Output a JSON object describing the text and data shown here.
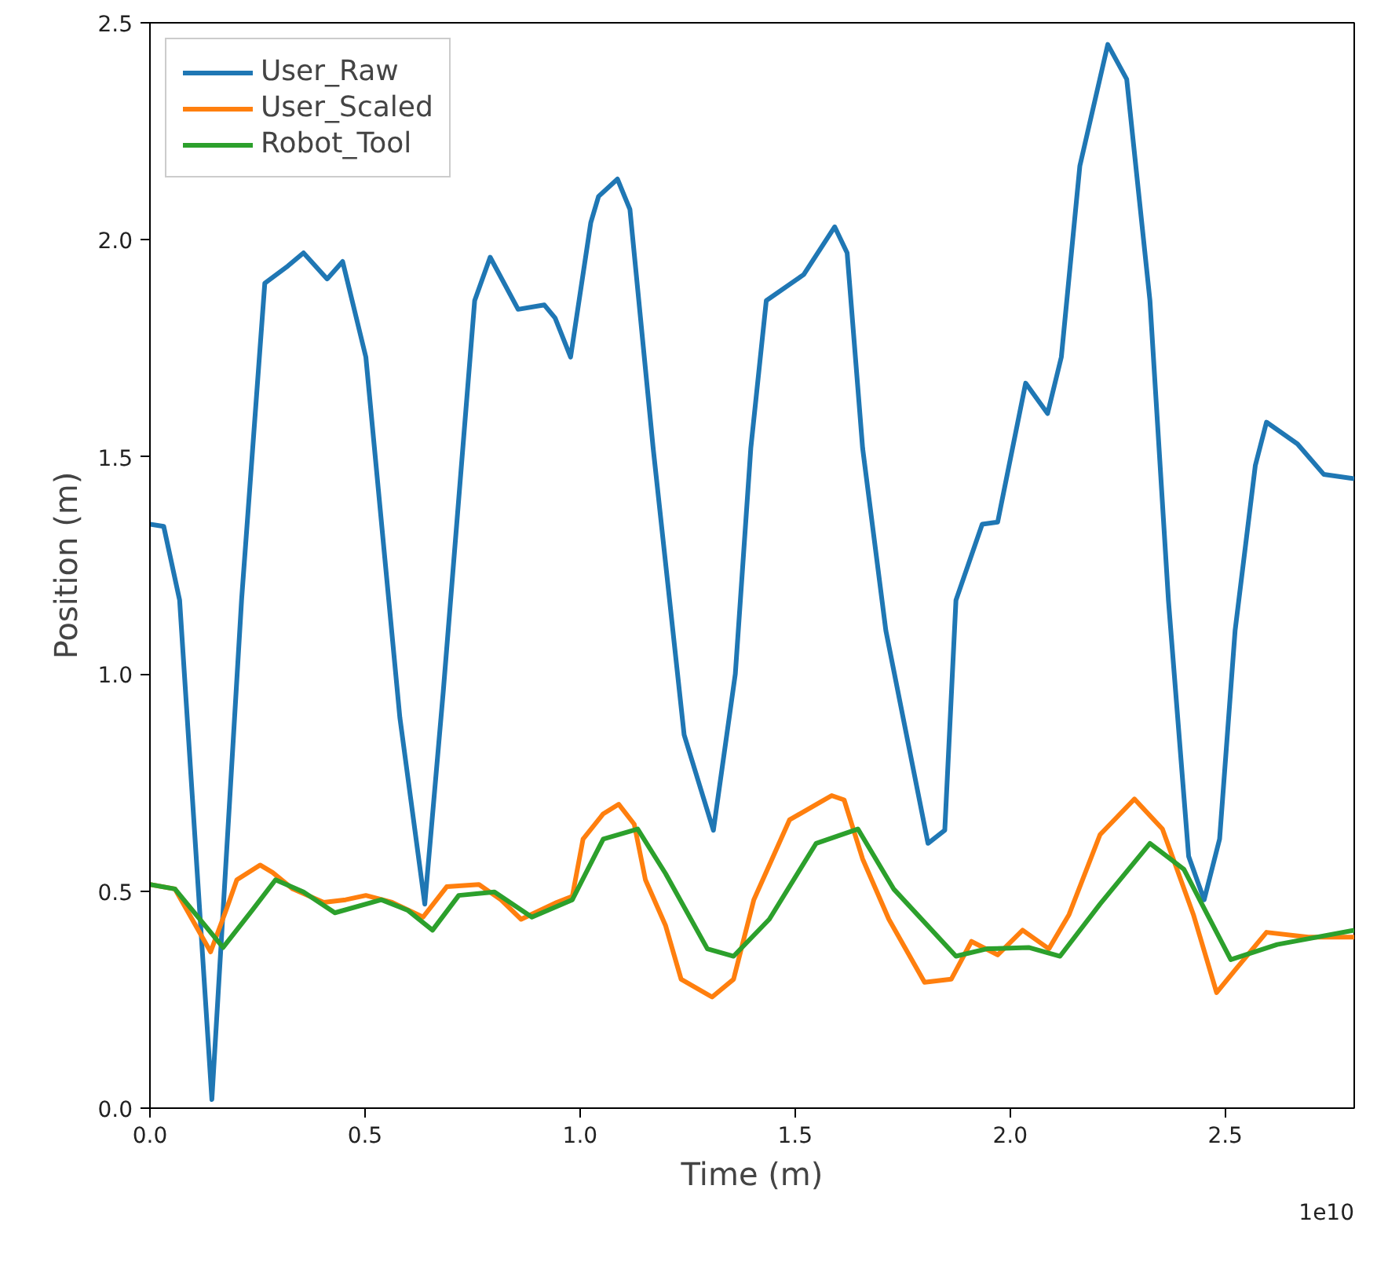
{
  "chart_data": {
    "type": "line",
    "xlabel": "Time (m)",
    "ylabel": "Position (m)",
    "annotations": [
      "1e10"
    ],
    "xlim": [
      0,
      2.8
    ],
    "ylim": [
      0,
      2.5
    ],
    "xticks": [
      {
        "value": 0,
        "label": "0.0"
      },
      0.5,
      {
        "value": 1.0,
        "label": "1.0"
      },
      1.5,
      {
        "value": 2.0,
        "label": "2.0"
      },
      2.5
    ],
    "yticks": [
      {
        "value": 0,
        "label": "0.0"
      },
      0.5,
      {
        "value": 1.0,
        "label": "1.0"
      },
      1.5,
      {
        "value": 2.0,
        "label": "2.0"
      },
      2.5
    ],
    "legend": "top left",
    "grid": false,
    "line_style": "solid",
    "marker": "none",
    "series": [
      {
        "name": "User_Raw",
        "color": "#1f77b4",
        "x": [
          0,
          0.032,
          0.069,
          0.144,
          0.213,
          0.267,
          0.321,
          0.357,
          0.412,
          0.448,
          0.502,
          0.581,
          0.639,
          0.682,
          0.755,
          0.791,
          0.856,
          0.917,
          0.942,
          0.978,
          1.025,
          1.043,
          1.087,
          1.116,
          1.17,
          1.242,
          1.31,
          1.361,
          1.397,
          1.433,
          1.52,
          1.592,
          1.621,
          1.657,
          1.711,
          1.809,
          1.848,
          1.874,
          1.935,
          1.971,
          2.036,
          2.087,
          2.119,
          2.162,
          2.227,
          2.271,
          2.325,
          2.368,
          2.415,
          2.451,
          2.487,
          2.523,
          2.57,
          2.596,
          2.668,
          2.729,
          2.8
        ],
        "values": [
          1.345,
          1.34,
          1.17,
          0.02,
          1.17,
          1.9,
          1.94,
          1.97,
          1.91,
          1.95,
          1.73,
          0.9,
          0.47,
          0.96,
          1.86,
          1.96,
          1.84,
          1.85,
          1.82,
          1.73,
          2.04,
          2.1,
          2.14,
          2.07,
          1.52,
          0.86,
          0.64,
          1.0,
          1.52,
          1.86,
          1.92,
          2.03,
          1.97,
          1.52,
          1.1,
          0.61,
          0.64,
          1.17,
          1.345,
          1.35,
          1.67,
          1.6,
          1.73,
          2.17,
          2.45,
          2.37,
          1.86,
          1.17,
          0.58,
          0.48,
          0.62,
          1.1,
          1.48,
          1.58,
          1.53,
          1.46,
          1.45
        ]
      },
      {
        "name": "User_Scaled",
        "color": "#ff7f0e",
        "x": [
          0,
          0.058,
          0.141,
          0.177,
          0.202,
          0.256,
          0.285,
          0.332,
          0.404,
          0.455,
          0.502,
          0.563,
          0.635,
          0.69,
          0.765,
          0.816,
          0.863,
          0.946,
          0.982,
          1.007,
          1.054,
          1.09,
          1.126,
          1.152,
          1.199,
          1.235,
          1.307,
          1.357,
          1.368,
          1.404,
          1.487,
          1.585,
          1.614,
          1.657,
          1.718,
          1.801,
          1.863,
          1.91,
          1.971,
          2.029,
          2.09,
          2.137,
          2.209,
          2.289,
          2.354,
          2.426,
          2.48,
          2.523,
          2.596,
          2.693,
          2.8
        ],
        "values": [
          0.515,
          0.505,
          0.36,
          0.456,
          0.526,
          0.56,
          0.543,
          0.505,
          0.474,
          0.48,
          0.49,
          0.474,
          0.44,
          0.51,
          0.515,
          0.48,
          0.435,
          0.474,
          0.488,
          0.62,
          0.678,
          0.7,
          0.654,
          0.526,
          0.42,
          0.297,
          0.256,
          0.297,
          0.34,
          0.48,
          0.664,
          0.72,
          0.71,
          0.574,
          0.435,
          0.29,
          0.297,
          0.384,
          0.353,
          0.41,
          0.367,
          0.446,
          0.63,
          0.712,
          0.643,
          0.446,
          0.266,
          0.318,
          0.405,
          0.394,
          0.394
        ]
      },
      {
        "name": "Robot_Tool",
        "color": "#2ca02c",
        "x": [
          0,
          0.058,
          0.17,
          0.238,
          0.292,
          0.357,
          0.43,
          0.538,
          0.599,
          0.657,
          0.718,
          0.801,
          0.888,
          0.982,
          1.054,
          1.134,
          1.199,
          1.296,
          1.357,
          1.44,
          1.549,
          1.646,
          1.729,
          1.874,
          1.946,
          2.043,
          2.116,
          2.209,
          2.325,
          2.404,
          2.513,
          2.621,
          2.8
        ],
        "values": [
          0.515,
          0.505,
          0.37,
          0.456,
          0.526,
          0.498,
          0.45,
          0.48,
          0.456,
          0.41,
          0.49,
          0.498,
          0.44,
          0.48,
          0.62,
          0.643,
          0.54,
          0.367,
          0.35,
          0.435,
          0.61,
          0.643,
          0.505,
          0.35,
          0.367,
          0.37,
          0.35,
          0.47,
          0.61,
          0.55,
          0.342,
          0.377,
          0.41
        ]
      }
    ]
  }
}
